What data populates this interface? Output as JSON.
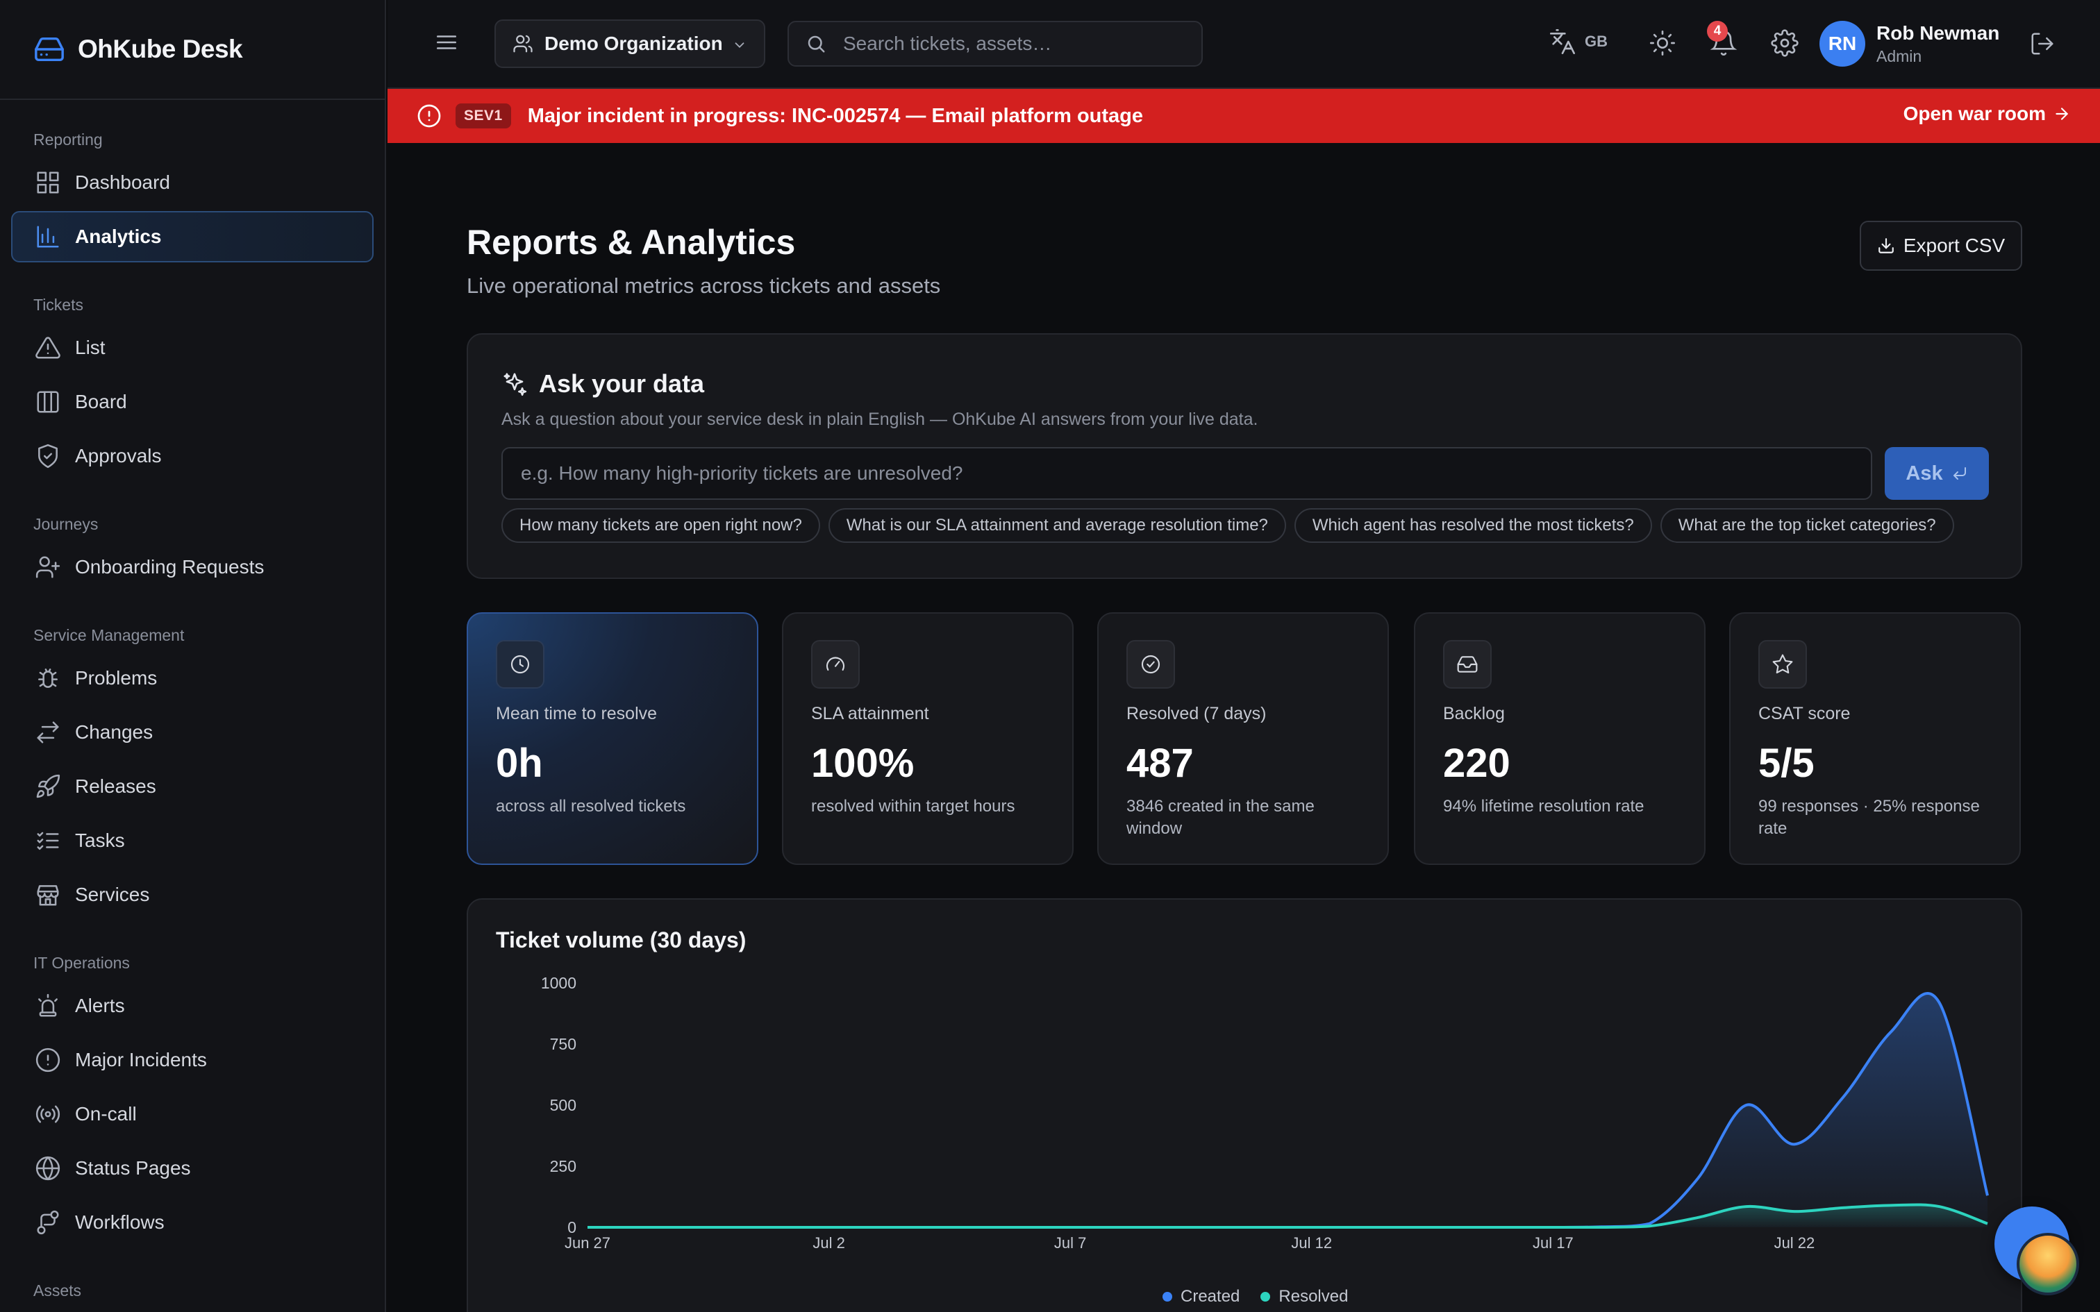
{
  "app": {
    "name": "OhKube Desk"
  },
  "sidebar": {
    "sections": [
      {
        "title": "Reporting",
        "items": [
          {
            "label": "Dashboard",
            "icon": "dashboard-icon"
          },
          {
            "label": "Analytics",
            "icon": "bar-chart-icon",
            "active": true
          }
        ]
      },
      {
        "title": "Tickets",
        "items": [
          {
            "label": "List",
            "icon": "warning-icon"
          },
          {
            "label": "Board",
            "icon": "board-icon"
          },
          {
            "label": "Approvals",
            "icon": "shield-check-icon"
          }
        ]
      },
      {
        "title": "Journeys",
        "items": [
          {
            "label": "Onboarding Requests",
            "icon": "user-plus-icon"
          }
        ]
      },
      {
        "title": "Service Management",
        "items": [
          {
            "label": "Problems",
            "icon": "bug-icon"
          },
          {
            "label": "Changes",
            "icon": "arrows-swap-icon"
          },
          {
            "label": "Releases",
            "icon": "rocket-icon"
          },
          {
            "label": "Tasks",
            "icon": "checklist-icon"
          },
          {
            "label": "Services",
            "icon": "store-icon"
          }
        ]
      },
      {
        "title": "IT Operations",
        "items": [
          {
            "label": "Alerts",
            "icon": "siren-icon"
          },
          {
            "label": "Major Incidents",
            "icon": "alert-circle-icon"
          },
          {
            "label": "On-call",
            "icon": "radio-icon"
          },
          {
            "label": "Status Pages",
            "icon": "globe-icon"
          },
          {
            "label": "Workflows",
            "icon": "workflow-icon"
          }
        ]
      },
      {
        "title": "Assets",
        "items": []
      }
    ]
  },
  "topbar": {
    "org": "Demo Organization",
    "search_placeholder": "Search tickets, assets…",
    "language": "GB",
    "notifications_count": "4",
    "user": {
      "initials": "RN",
      "name": "Rob Newman",
      "role": "Admin"
    }
  },
  "banner": {
    "severity": "SEV1",
    "text": "Major incident in progress: INC-002574 — Email platform outage",
    "action": "Open war room",
    "color": "#d3201f"
  },
  "page": {
    "title": "Reports & Analytics",
    "subtitle": "Live operational metrics across tickets and assets",
    "export_label": "Export CSV"
  },
  "ask": {
    "title": "Ask your data",
    "subtitle": "Ask a question about your service desk in plain English — OhKube AI answers from your live data.",
    "placeholder": "e.g. How many high-priority tickets are unresolved?",
    "button": "Ask",
    "suggestions": [
      "How many tickets are open right now?",
      "What is our SLA attainment and average resolution time?",
      "Which agent has resolved the most tickets?",
      "What are the top ticket categories?"
    ]
  },
  "kpis": [
    {
      "icon": "clock-icon",
      "label": "Mean time to resolve",
      "value": "0h",
      "sub": "across all resolved tickets"
    },
    {
      "icon": "gauge-icon",
      "label": "SLA attainment",
      "value": "100%",
      "sub": "resolved within target hours"
    },
    {
      "icon": "check-circle-icon",
      "label": "Resolved (7 days)",
      "value": "487",
      "sub": "3846 created in the same window"
    },
    {
      "icon": "inbox-icon",
      "label": "Backlog",
      "value": "220",
      "sub": "94% lifetime resolution rate"
    },
    {
      "icon": "star-icon",
      "label": "CSAT score",
      "value": "5/5",
      "sub": "99 responses · 25% response rate"
    }
  ],
  "chart_data": {
    "type": "area",
    "title": "Ticket volume (30 days)",
    "x": [
      "Jun 27",
      "Jun 28",
      "Jun 29",
      "Jun 30",
      "Jul 1",
      "Jul 2",
      "Jul 3",
      "Jul 4",
      "Jul 5",
      "Jul 6",
      "Jul 7",
      "Jul 8",
      "Jul 9",
      "Jul 10",
      "Jul 11",
      "Jul 12",
      "Jul 13",
      "Jul 14",
      "Jul 15",
      "Jul 16",
      "Jul 17",
      "Jul 18",
      "Jul 19",
      "Jul 20",
      "Jul 21",
      "Jul 22",
      "Jul 23",
      "Jul 24",
      "Jul 25",
      "Jul 26"
    ],
    "x_tick_labels": [
      "Jun 27",
      "Jul 2",
      "Jul 7",
      "Jul 12",
      "Jul 17",
      "Jul 22"
    ],
    "y_ticks": [
      0,
      250,
      500,
      750,
      1000
    ],
    "ylim": [
      0,
      1000
    ],
    "series": [
      {
        "name": "Created",
        "color": "#3b82f6",
        "values": [
          0,
          0,
          0,
          0,
          0,
          0,
          0,
          0,
          0,
          0,
          0,
          0,
          0,
          0,
          0,
          0,
          0,
          0,
          0,
          0,
          0,
          2,
          15,
          200,
          500,
          340,
          530,
          800,
          920,
          130
        ]
      },
      {
        "name": "Resolved",
        "color": "#2dd4bf",
        "values": [
          0,
          0,
          0,
          0,
          0,
          0,
          0,
          0,
          0,
          0,
          0,
          0,
          0,
          0,
          0,
          0,
          0,
          0,
          0,
          0,
          0,
          0,
          5,
          40,
          85,
          65,
          80,
          90,
          85,
          15
        ]
      }
    ]
  }
}
